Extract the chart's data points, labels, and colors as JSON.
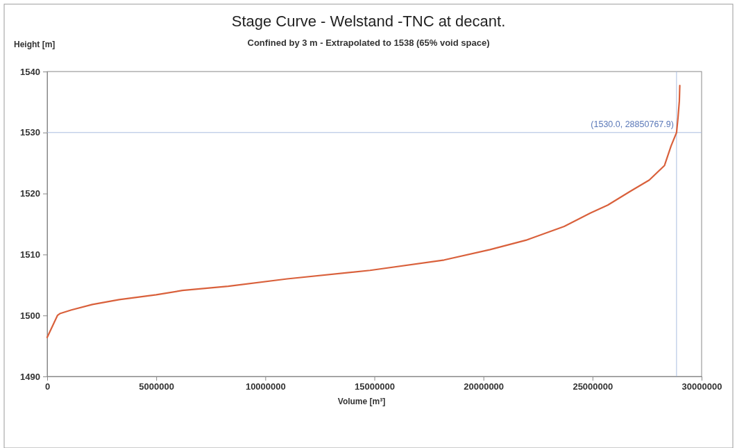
{
  "chart_data": {
    "type": "line",
    "title": "Stage Curve - Welstand -TNC at decant.",
    "subtitle": "Confined by 3 m - Extrapolated to 1538 (65% void space)",
    "xlabel": "Volume [m³]",
    "ylabel": "Height [m]",
    "series": [
      {
        "color": "#d9603b",
        "x": [
          0,
          470000,
          580000,
          1110000,
          2070000,
          3300000,
          5000000,
          6200000,
          8300000,
          11000000,
          14800000,
          18200000,
          20300000,
          22000000,
          23700000,
          24900000,
          25700000,
          26700000,
          27600000,
          28300000,
          28600000,
          28850767.9,
          28920000,
          28980000,
          29000000
        ],
        "values": [
          1496.4,
          1500.0,
          1500.3,
          1500.9,
          1501.8,
          1502.6,
          1503.4,
          1504.1,
          1504.8,
          1506.0,
          1507.4,
          1509.1,
          1510.8,
          1512.4,
          1514.6,
          1516.8,
          1518.1,
          1520.3,
          1522.2,
          1524.6,
          1527.8,
          1530.0,
          1532.5,
          1535.2,
          1537.7
        ]
      }
    ],
    "xlim": [
      0,
      30000000
    ],
    "xticks": [
      0,
      5000000,
      10000000,
      15000000,
      20000000,
      25000000,
      30000000
    ],
    "ylim": [
      1490,
      1540
    ],
    "yticks": [
      1490,
      1500,
      1510,
      1520,
      1530,
      1540
    ],
    "ref_lines": [
      {
        "axis": "y",
        "value": 1530,
        "color": "#a8bde0"
      },
      {
        "axis": "x",
        "value": 28850767.9,
        "color": "#a8bde0"
      }
    ],
    "annotations": [
      "(1530.0, 28850767.9)"
    ],
    "grid": false,
    "marker": "none",
    "line_style": "solid"
  }
}
